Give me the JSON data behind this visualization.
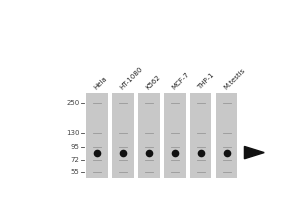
{
  "fig_width": 3.0,
  "fig_height": 2.0,
  "dpi": 100,
  "bg_color": "#ffffff",
  "lane_labels": [
    "Hela",
    "HT-1080",
    "K562",
    "MCF-7",
    "THP-1",
    "M.testis"
  ],
  "mw_markers": [
    250,
    130,
    95,
    72,
    55
  ],
  "band_mw": 84,
  "lane_color": "#c8c8c8",
  "gap_color": "#ffffff",
  "band_color": "#111111",
  "arrow_color": "#111111",
  "mw_label_color": "#444444",
  "tick_color": "#444444",
  "marker_line_color": "#999999",
  "mw_log_min": 48,
  "mw_log_max": 310
}
